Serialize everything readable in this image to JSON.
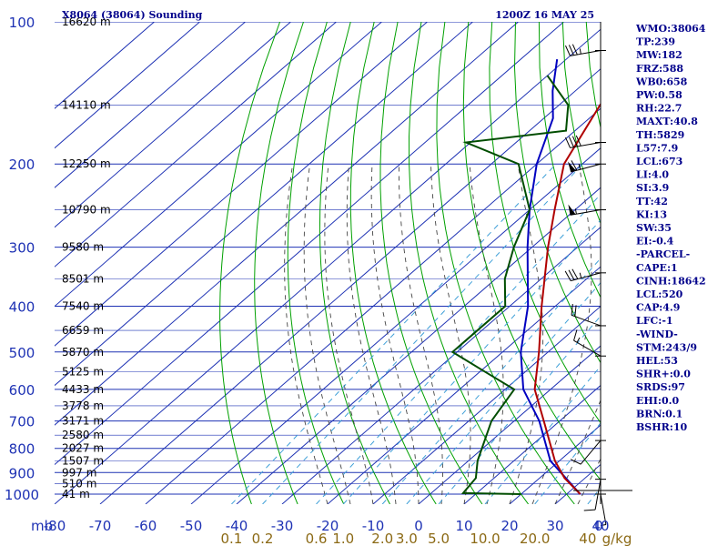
{
  "chart_data": {
    "type": "skew-t",
    "header_left": "X8064 (38064) Sounding",
    "header_right": "1200Z 16 MAY 25",
    "pressure_levels": [
      100,
      200,
      300,
      400,
      500,
      600,
      700,
      800,
      900,
      1000
    ],
    "temperature_ticks": [
      -80,
      -70,
      -60,
      -50,
      -40,
      -30,
      -20,
      -10,
      0,
      10,
      20,
      30,
      40
    ],
    "pressure_unit_label": "mb",
    "mixing_ratio_ticks": [
      {
        "label": "0.1",
        "value": 0.1
      },
      {
        "label": "0.2",
        "value": 0.2
      },
      {
        "label": "0.6",
        "value": 0.6
      },
      {
        "label": "1.0",
        "value": 1.0
      },
      {
        "label": "2.0",
        "value": 2.0
      },
      {
        "label": "3.0",
        "value": 3.0
      },
      {
        "label": "5.0",
        "value": 5.0
      },
      {
        "label": "10.0",
        "value": 10.0
      },
      {
        "label": "20.0",
        "value": 20.0
      },
      {
        "label": "40",
        "value": 40
      }
    ],
    "mixing_ratio_unit": "g/kg",
    "x_end_label": "0",
    "height_labels": [
      {
        "p": 100,
        "label": "16620 m"
      },
      {
        "p": 150,
        "label": "14110 m"
      },
      {
        "p": 200,
        "label": "12250 m"
      },
      {
        "p": 250,
        "label": "10790 m"
      },
      {
        "p": 300,
        "label": "9580 m"
      },
      {
        "p": 350,
        "label": "8501 m"
      },
      {
        "p": 400,
        "label": "7540 m"
      },
      {
        "p": 450,
        "label": "6659 m"
      },
      {
        "p": 500,
        "label": "5870 m"
      },
      {
        "p": 550,
        "label": "5125 m"
      },
      {
        "p": 600,
        "label": "4433 m"
      },
      {
        "p": 650,
        "label": "3778 m"
      },
      {
        "p": 700,
        "label": "3171 m"
      },
      {
        "p": 750,
        "label": "2580 m"
      },
      {
        "p": 800,
        "label": "2027 m"
      },
      {
        "p": 850,
        "label": "1507 m"
      },
      {
        "p": 900,
        "label": "997 m"
      },
      {
        "p": 950,
        "label": "510 m"
      },
      {
        "p": 1000,
        "label": "41 m"
      }
    ],
    "temperature_profile": [
      {
        "p": 1000,
        "t": 33.0
      },
      {
        "p": 925,
        "t": 25.5
      },
      {
        "p": 850,
        "t": 19.0
      },
      {
        "p": 700,
        "t": 6.5
      },
      {
        "p": 600,
        "t": -3.5
      },
      {
        "p": 500,
        "t": -12.0
      },
      {
        "p": 400,
        "t": -23.0
      },
      {
        "p": 300,
        "t": -36.5
      },
      {
        "p": 250,
        "t": -44.5
      },
      {
        "p": 200,
        "t": -54.0
      },
      {
        "p": 150,
        "t": -61.0
      },
      {
        "p": 100,
        "t": -68.0
      }
    ],
    "dewpoint_profile": [
      {
        "p": 1000,
        "t": 20.0
      },
      {
        "p": 995,
        "t": 7.0
      },
      {
        "p": 925,
        "t": 6.0
      },
      {
        "p": 850,
        "t": 2.0
      },
      {
        "p": 700,
        "t": -5.0
      },
      {
        "p": 600,
        "t": -8.0
      },
      {
        "p": 550,
        "t": -19.0
      },
      {
        "p": 500,
        "t": -31.0
      },
      {
        "p": 400,
        "t": -31.0
      },
      {
        "p": 350,
        "t": -38.0
      },
      {
        "p": 300,
        "t": -44.0
      },
      {
        "p": 250,
        "t": -50.0
      },
      {
        "p": 200,
        "t": -64.0
      },
      {
        "p": 180,
        "t": -81.0
      },
      {
        "p": 170,
        "t": -62.0
      },
      {
        "p": 150,
        "t": -68.0
      },
      {
        "p": 130,
        "t": -80.0
      }
    ],
    "parcel_profile": [
      {
        "p": 1000,
        "t": 33.0
      },
      {
        "p": 850,
        "t": 18.0
      },
      {
        "p": 700,
        "t": 5.5
      },
      {
        "p": 600,
        "t": -6.0
      },
      {
        "p": 500,
        "t": -16.0
      },
      {
        "p": 400,
        "t": -26.0
      },
      {
        "p": 300,
        "t": -41.0
      },
      {
        "p": 250,
        "t": -50.0
      },
      {
        "p": 200,
        "t": -60.0
      },
      {
        "p": 160,
        "t": -68.0
      },
      {
        "p": 140,
        "t": -75.0
      },
      {
        "p": 120,
        "t": -82.0
      }
    ],
    "wind_barbs": [
      {
        "p": 115,
        "dir": 260,
        "kt": 35
      },
      {
        "p": 180,
        "dir": 260,
        "kt": 40
      },
      {
        "p": 200,
        "dir": 255,
        "kt": 65
      },
      {
        "p": 250,
        "dir": 260,
        "kt": 55
      },
      {
        "p": 340,
        "dir": 255,
        "kt": 35
      },
      {
        "p": 440,
        "dir": 290,
        "kt": 20
      },
      {
        "p": 510,
        "dir": 300,
        "kt": 15
      },
      {
        "p": 770,
        "dir": 220,
        "kt": 10
      },
      {
        "p": 930,
        "dir": 190,
        "kt": 10
      },
      {
        "p": 1000,
        "dir": 170,
        "kt": 5
      }
    ],
    "indices": [
      "WMO:38064",
      "TP:239",
      "MW:182",
      "FRZ:588",
      "WB0:658",
      "PW:0.58",
      "RH:22.7",
      "MAXT:40.8",
      "TH:5829",
      "L57:7.9",
      "LCL:673",
      "LI:4.0",
      "SI:3.9",
      "TT:42",
      "KI:13",
      "SW:35",
      "EI:-0.4",
      "-PARCEL-",
      "CAPE:1",
      "CINH:18642",
      "LCL:520",
      "CAP:4.9",
      "LFC:-1",
      "-WIND-",
      "STM:243/9",
      "HEL:53",
      "SHR+:0.0",
      "SRDS:97",
      "EHI:0.0",
      "BRN:0.1",
      "BSHR:10"
    ],
    "colors": {
      "isobar": "#1e32b4",
      "isotherm": "#1e32b4",
      "dry_adiabat": "#00a000",
      "moist_adiabat": "#444444",
      "mixing_ratio": "#3fa0d8",
      "temperature": "#b00000",
      "dewpoint": "#004d00",
      "parcel": "#0000c0",
      "barb": "#000000"
    }
  }
}
